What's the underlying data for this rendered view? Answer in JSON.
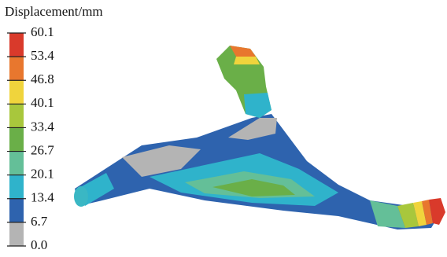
{
  "legend": {
    "title": "Displacement/mm",
    "ticks": [
      "60.1",
      "53.4",
      "46.8",
      "40.1",
      "33.4",
      "26.7",
      "20.1",
      "13.4",
      "6.7",
      "0.0"
    ],
    "colors": [
      "#d93a2b",
      "#e8772e",
      "#f0d43c",
      "#a8c73c",
      "#6aaf48",
      "#64bf98",
      "#2fb3cb",
      "#2e63ae",
      "#b4b4b4"
    ]
  }
}
